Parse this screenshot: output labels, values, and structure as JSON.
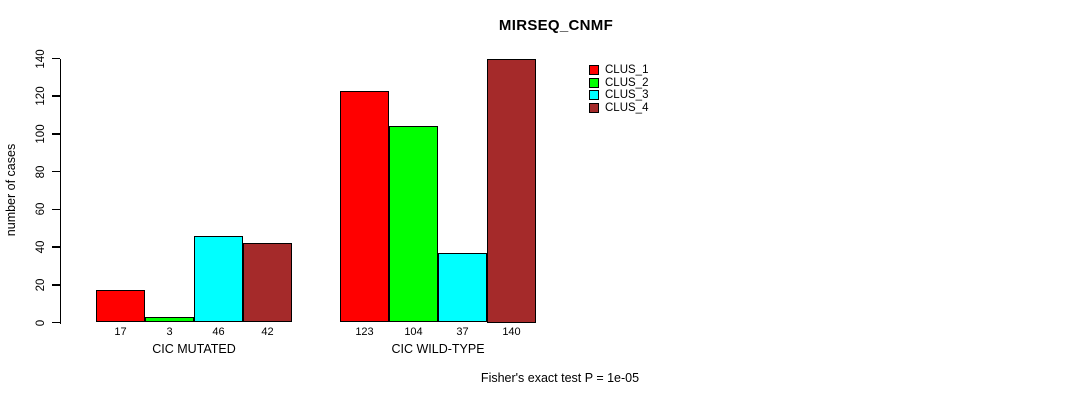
{
  "chart_data": {
    "type": "bar",
    "title": "MIRSEQ_CNMF",
    "ylabel": "number of cases",
    "xlabel": "",
    "ylim": [
      0,
      140
    ],
    "yticks": [
      0,
      20,
      40,
      60,
      80,
      100,
      120,
      140
    ],
    "grid": false,
    "legend_position": "top-right",
    "categories": [
      "CIC MUTATED",
      "CIC WILD-TYPE"
    ],
    "series": [
      {
        "name": "CLUS_1",
        "color": "#FF0000",
        "values": [
          17,
          123
        ]
      },
      {
        "name": "CLUS_2",
        "color": "#00FF00",
        "values": [
          3,
          104
        ]
      },
      {
        "name": "CLUS_3",
        "color": "#00FFFF",
        "values": [
          46,
          37
        ]
      },
      {
        "name": "CLUS_4",
        "color": "#A52A2A",
        "values": [
          42,
          140
        ]
      }
    ],
    "axis_color": "#000000",
    "annotation": "Fisher's exact test P = 1e-05"
  }
}
